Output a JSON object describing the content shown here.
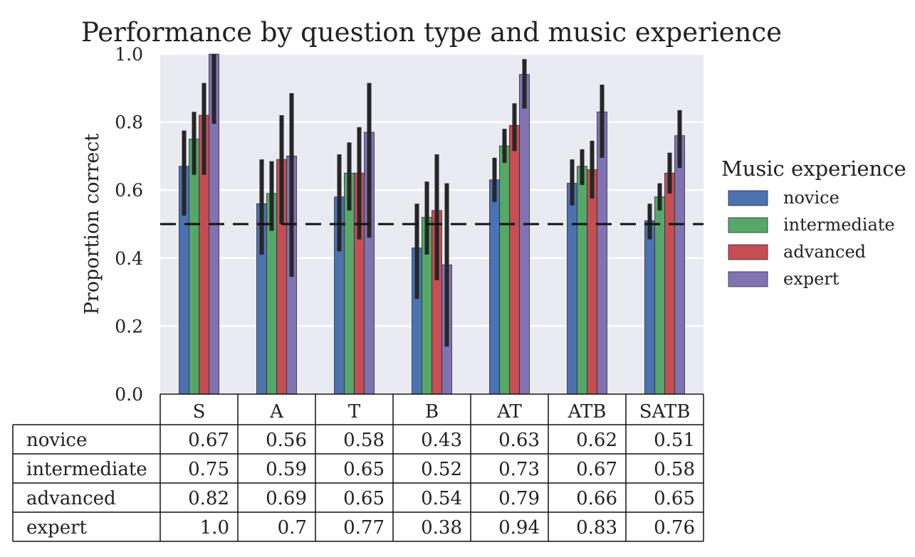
{
  "chart_data": {
    "type": "bar",
    "title": "Performance by question type and music experience",
    "ylabel": "Proportion correct",
    "xlabel": "",
    "ylim": [
      0,
      1.0
    ],
    "yticks": [
      "0.0",
      "0.2",
      "0.4",
      "0.6",
      "0.8",
      "1.0"
    ],
    "categories": [
      "S",
      "A",
      "T",
      "B",
      "AT",
      "ATB",
      "SATB"
    ],
    "legend": {
      "title": "Music experience",
      "placement": "right"
    },
    "reference_line": {
      "y": 0.5,
      "style": "dashed"
    },
    "series": [
      {
        "name": "novice",
        "color": "#4c72b0",
        "values": [
          0.67,
          0.56,
          0.58,
          0.43,
          0.63,
          0.62,
          0.51
        ],
        "err_low": [
          0.525,
          0.41,
          0.42,
          0.28,
          0.565,
          0.555,
          0.455
        ],
        "err_high": [
          0.775,
          0.69,
          0.705,
          0.56,
          0.695,
          0.69,
          0.56
        ]
      },
      {
        "name": "intermediate",
        "color": "#55a868",
        "values": [
          0.75,
          0.59,
          0.65,
          0.52,
          0.73,
          0.67,
          0.58
        ],
        "err_low": [
          0.645,
          0.48,
          0.54,
          0.41,
          0.68,
          0.615,
          0.54
        ],
        "err_high": [
          0.83,
          0.685,
          0.74,
          0.625,
          0.78,
          0.72,
          0.62
        ]
      },
      {
        "name": "advanced",
        "color": "#c44e52",
        "values": [
          0.82,
          0.69,
          0.65,
          0.54,
          0.79,
          0.66,
          0.65
        ],
        "err_low": [
          0.645,
          0.5,
          0.455,
          0.335,
          0.715,
          0.575,
          0.59
        ],
        "err_high": [
          0.915,
          0.82,
          0.785,
          0.705,
          0.855,
          0.745,
          0.71
        ]
      },
      {
        "name": "expert",
        "color": "#8172b2",
        "values": [
          1.0,
          0.7,
          0.77,
          0.38,
          0.94,
          0.83,
          0.76
        ],
        "err_low": [
          0.795,
          0.345,
          0.46,
          0.14,
          0.84,
          0.695,
          0.665
        ],
        "err_high": [
          1.0,
          0.885,
          0.915,
          0.62,
          0.985,
          0.91,
          0.835
        ]
      }
    ],
    "grid": true,
    "table": {
      "columns": [
        "S",
        "A",
        "T",
        "B",
        "AT",
        "ATB",
        "SATB"
      ],
      "rows": [
        {
          "label": "novice",
          "cells": [
            "0.67",
            "0.56",
            "0.58",
            "0.43",
            "0.63",
            "0.62",
            "0.51"
          ]
        },
        {
          "label": "intermediate",
          "cells": [
            "0.75",
            "0.59",
            "0.65",
            "0.52",
            "0.73",
            "0.67",
            "0.58"
          ]
        },
        {
          "label": "advanced",
          "cells": [
            "0.82",
            "0.69",
            "0.65",
            "0.54",
            "0.79",
            "0.66",
            "0.65"
          ]
        },
        {
          "label": "expert",
          "cells": [
            "1.0",
            "0.7",
            "0.77",
            "0.38",
            "0.94",
            "0.83",
            "0.76"
          ]
        }
      ]
    }
  }
}
